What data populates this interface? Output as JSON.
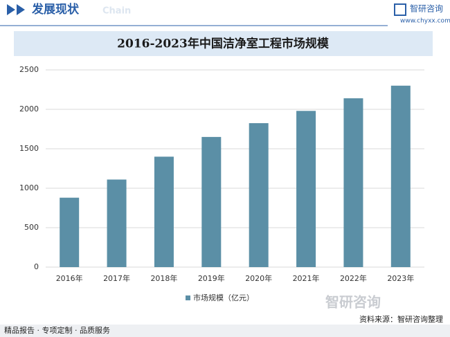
{
  "header": {
    "title": "发展现状",
    "subtitle": "Chain",
    "brand": "智研咨询",
    "url": "www.chyxx.com"
  },
  "chart_data": {
    "type": "bar",
    "title": "2016-2023年中国洁净室工程市场规模",
    "categories": [
      "2016年",
      "2017年",
      "2018年",
      "2019年",
      "2020年",
      "2021年",
      "2022年",
      "2023年"
    ],
    "series": [
      {
        "name": "市场规模（亿元）",
        "color": "#5b8fa6",
        "values": [
          880,
          1110,
          1400,
          1650,
          1825,
          1980,
          2140,
          2300
        ]
      }
    ],
    "ylim": [
      0,
      2500
    ],
    "yticks": [
      0,
      500,
      1000,
      1500,
      2000,
      2500
    ],
    "grid": true,
    "legend": "bottom"
  },
  "footer": {
    "slogan": "精品报告 · 专项定制 · 品质服务",
    "source": "资料来源：智研咨询整理",
    "watermark": "智研咨询"
  }
}
